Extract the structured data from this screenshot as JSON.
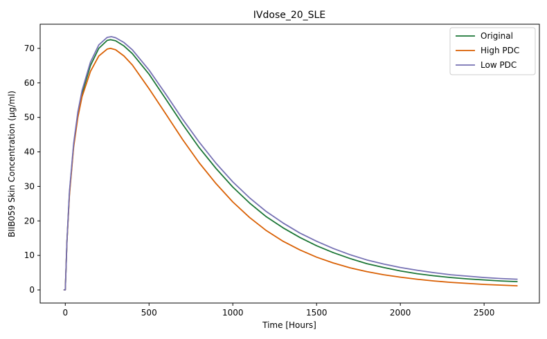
{
  "chart_data": {
    "type": "line",
    "title": "IVdose_20_SLE",
    "xlabel": "Time [Hours]",
    "ylabel": "BIIB059 Skin Concentration (µg/ml)",
    "xlim": [
      -150,
      2830
    ],
    "ylim": [
      -3.8,
      77
    ],
    "xticks": [
      0,
      500,
      1000,
      1500,
      2000,
      2500
    ],
    "yticks": [
      0,
      10,
      20,
      30,
      40,
      50,
      60,
      70
    ],
    "grid": false,
    "legend_position": "top-right",
    "series": [
      {
        "name": "Original",
        "color": "#1a7535",
        "points": [
          [
            -10,
            0
          ],
          [
            0,
            0
          ],
          [
            10,
            14
          ],
          [
            25,
            28
          ],
          [
            50,
            42
          ],
          [
            75,
            51
          ],
          [
            100,
            57
          ],
          [
            150,
            65
          ],
          [
            200,
            70
          ],
          [
            250,
            72.3
          ],
          [
            270,
            72.5
          ],
          [
            300,
            72.2
          ],
          [
            350,
            70.7
          ],
          [
            400,
            68.5
          ],
          [
            500,
            62.5
          ],
          [
            600,
            55.3
          ],
          [
            700,
            48
          ],
          [
            800,
            41.2
          ],
          [
            900,
            35.2
          ],
          [
            1000,
            29.8
          ],
          [
            1100,
            25.2
          ],
          [
            1200,
            21.2
          ],
          [
            1300,
            18
          ],
          [
            1400,
            15.2
          ],
          [
            1500,
            12.8
          ],
          [
            1600,
            10.8
          ],
          [
            1700,
            9.1
          ],
          [
            1800,
            7.6
          ],
          [
            1900,
            6.5
          ],
          [
            2000,
            5.5
          ],
          [
            2100,
            4.7
          ],
          [
            2200,
            4.1
          ],
          [
            2300,
            3.6
          ],
          [
            2400,
            3.2
          ],
          [
            2500,
            2.9
          ],
          [
            2600,
            2.6
          ],
          [
            2700,
            2.4
          ]
        ]
      },
      {
        "name": "High PDC",
        "color": "#d95f02",
        "points": [
          [
            -10,
            0
          ],
          [
            0,
            0
          ],
          [
            10,
            14
          ],
          [
            25,
            27.5
          ],
          [
            50,
            41.5
          ],
          [
            75,
            50
          ],
          [
            100,
            56
          ],
          [
            150,
            63.3
          ],
          [
            200,
            67.8
          ],
          [
            250,
            69.8
          ],
          [
            270,
            70
          ],
          [
            300,
            69.6
          ],
          [
            350,
            67.8
          ],
          [
            400,
            65.2
          ],
          [
            500,
            58.3
          ],
          [
            600,
            51
          ],
          [
            700,
            43.6
          ],
          [
            800,
            36.8
          ],
          [
            900,
            30.8
          ],
          [
            1000,
            25.5
          ],
          [
            1100,
            21
          ],
          [
            1200,
            17.2
          ],
          [
            1300,
            14.1
          ],
          [
            1400,
            11.6
          ],
          [
            1500,
            9.5
          ],
          [
            1600,
            7.8
          ],
          [
            1700,
            6.4
          ],
          [
            1800,
            5.3
          ],
          [
            1900,
            4.4
          ],
          [
            2000,
            3.7
          ],
          [
            2100,
            3.1
          ],
          [
            2200,
            2.6
          ],
          [
            2300,
            2.2
          ],
          [
            2400,
            1.9
          ],
          [
            2500,
            1.6
          ],
          [
            2600,
            1.4
          ],
          [
            2700,
            1.2
          ]
        ]
      },
      {
        "name": "Low PDC",
        "color": "#7570b3",
        "points": [
          [
            -10,
            0
          ],
          [
            0,
            0
          ],
          [
            10,
            14.2
          ],
          [
            25,
            28.5
          ],
          [
            50,
            42.5
          ],
          [
            75,
            51.5
          ],
          [
            100,
            57.8
          ],
          [
            150,
            66
          ],
          [
            200,
            71
          ],
          [
            250,
            73.2
          ],
          [
            275,
            73.4
          ],
          [
            300,
            73.1
          ],
          [
            350,
            71.7
          ],
          [
            400,
            69.6
          ],
          [
            500,
            63.7
          ],
          [
            600,
            56.7
          ],
          [
            700,
            49.5
          ],
          [
            800,
            42.8
          ],
          [
            900,
            36.7
          ],
          [
            1000,
            31.3
          ],
          [
            1100,
            26.7
          ],
          [
            1200,
            22.7
          ],
          [
            1300,
            19.4
          ],
          [
            1400,
            16.5
          ],
          [
            1500,
            14.1
          ],
          [
            1600,
            12
          ],
          [
            1700,
            10.2
          ],
          [
            1800,
            8.7
          ],
          [
            1900,
            7.5
          ],
          [
            2000,
            6.5
          ],
          [
            2100,
            5.7
          ],
          [
            2200,
            5
          ],
          [
            2300,
            4.4
          ],
          [
            2400,
            4
          ],
          [
            2500,
            3.6
          ],
          [
            2600,
            3.3
          ],
          [
            2700,
            3.1
          ]
        ]
      }
    ]
  }
}
